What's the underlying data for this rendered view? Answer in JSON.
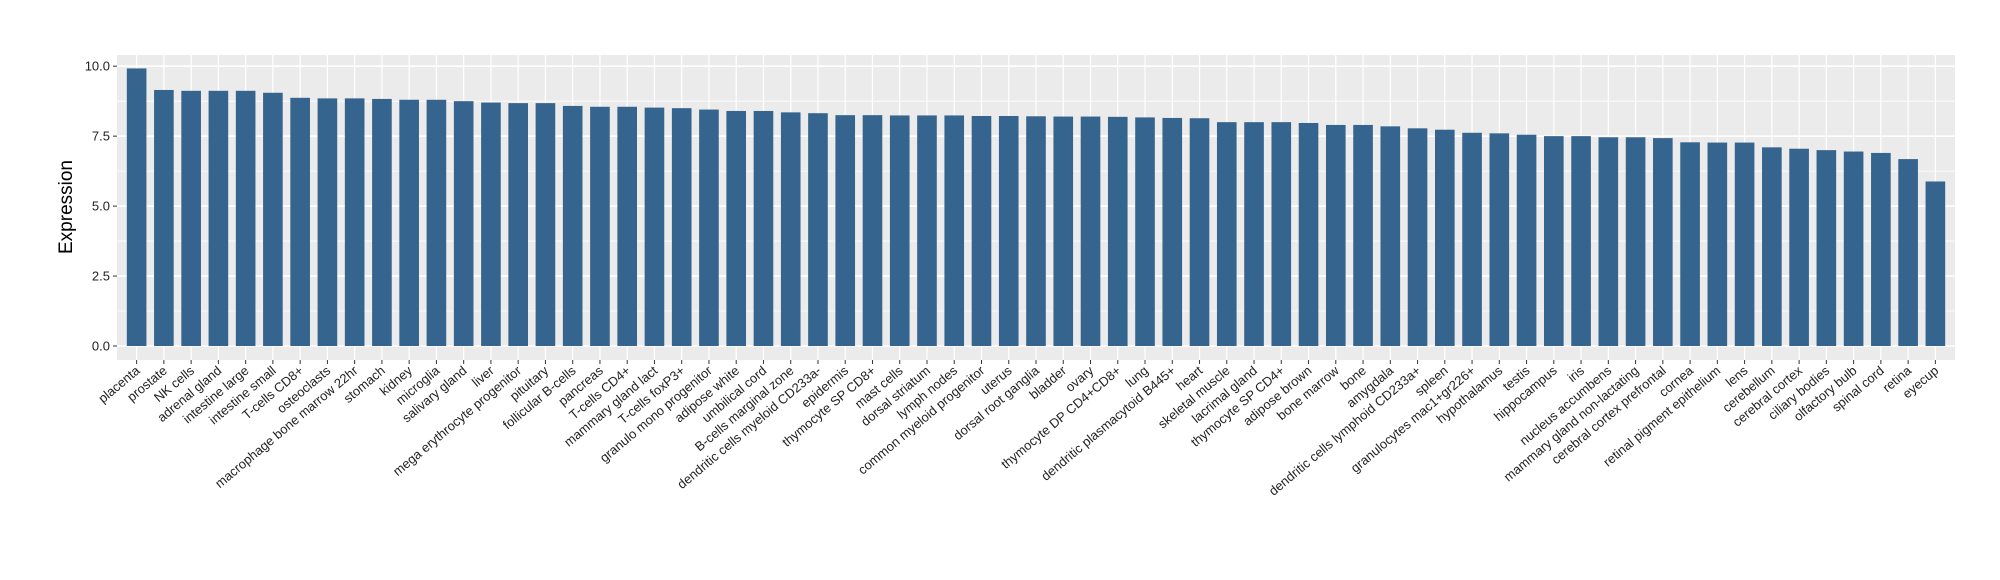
{
  "chart_data": {
    "type": "bar",
    "title": "",
    "xlabel": "",
    "ylabel": "Expression",
    "ylim": [
      -0.5,
      10.4
    ],
    "yticks": [
      0.0,
      2.5,
      5.0,
      7.5,
      10.0
    ],
    "ytick_labels": [
      "0.0",
      "2.5",
      "5.0",
      "7.5",
      "10.0"
    ],
    "grid": true,
    "legend": "none",
    "bar_color": "#35648e",
    "panel_color": "#ebebeb",
    "gridline_color": "#ffffff",
    "categories": [
      "placenta",
      "prostate",
      "NK cells",
      "adrenal gland",
      "intestine large",
      "intestine small",
      "T-cells CD8+",
      "osteoclasts",
      "macrophage bone marrow 22hr",
      "stomach",
      "kidney",
      "microglia",
      "salivary gland",
      "liver",
      "mega erythrocyte progenitor",
      "pituitary",
      "follicular B-cells",
      "pancreas",
      "T-cells CD4+",
      "mammary gland  lact",
      "T-cells foxP3+",
      "granulo mono progenitor",
      "adipose white",
      "umbilical cord",
      "B-cells marginal zone",
      "dendritic cells myeloid CD233a-",
      "epidermis",
      "thymocyte SP CD8+",
      "mast cells",
      "dorsal striatum",
      "lymph nodes",
      "common myeloid progenitor",
      "uterus",
      "dorsal root ganglia",
      "bladder",
      "ovary",
      "thymocyte DP CD4+CD8+",
      "lung",
      "dendritic plasmacytoid B445+",
      "heart",
      "skeletal muscle",
      "lacrimal gland",
      "thymocyte SP CD4+",
      "adipose brown",
      "bone marrow",
      "bone",
      "amygdala",
      "dendritic cells lymphoid CD233a+",
      "spleen",
      "granulocytes mac1+gr226+",
      "hypothalamus",
      "testis",
      "hippocampus",
      "iris",
      "nucleus accumbens",
      "mammary gland non-lactating",
      "cerebral cortex prefrontal",
      "cornea",
      "retinal pigment epithelium",
      "lens",
      "cerebellum",
      "cerebral cortex",
      "ciliary bodies",
      "olfactory bulb",
      "spinal cord",
      "retina",
      "eyecup"
    ],
    "values": [
      9.92,
      9.15,
      9.12,
      9.12,
      9.12,
      9.05,
      8.87,
      8.85,
      8.85,
      8.83,
      8.8,
      8.8,
      8.75,
      8.7,
      8.68,
      8.68,
      8.58,
      8.55,
      8.55,
      8.52,
      8.5,
      8.45,
      8.4,
      8.4,
      8.35,
      8.32,
      8.25,
      8.25,
      8.24,
      8.24,
      8.24,
      8.22,
      8.22,
      8.21,
      8.2,
      8.2,
      8.19,
      8.17,
      8.15,
      8.14,
      8.0,
      8.0,
      8.0,
      7.97,
      7.9,
      7.9,
      7.85,
      7.78,
      7.73,
      7.62,
      7.6,
      7.55,
      7.5,
      7.5,
      7.46,
      7.46,
      7.43,
      7.28,
      7.27,
      7.27,
      7.1,
      7.05,
      7.0,
      6.95,
      6.9,
      6.68,
      5.88
    ]
  }
}
